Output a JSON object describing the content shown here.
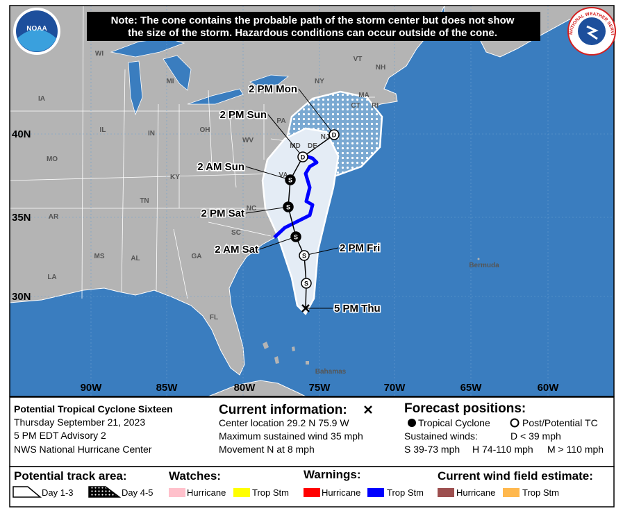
{
  "header": {
    "note_line1": "Note: The cone contains the probable path of the storm center but does not show",
    "note_line2": "the size of the storm. Hazardous conditions can occur outside of the cone.",
    "noaa_logo": "NOAA",
    "nws_logo": "NATIONAL WEATHER SERVICE"
  },
  "map": {
    "lat_labels": [
      "40N",
      "35N",
      "30N"
    ],
    "lon_labels": [
      "90W",
      "85W",
      "80W",
      "75W",
      "70W",
      "65W",
      "60W"
    ],
    "state_labels": [
      "WI",
      "MI",
      "NY",
      "VT",
      "NH",
      "MA",
      "IA",
      "IL",
      "IN",
      "OH",
      "PA",
      "CT",
      "RI",
      "NJ",
      "MD",
      "DE",
      "WV",
      "MO",
      "KY",
      "VA",
      "TN",
      "NC",
      "AR",
      "SC",
      "MS",
      "AL",
      "GA",
      "LA",
      "FL"
    ],
    "place_labels": [
      "Bermuda",
      "Bahamas"
    ],
    "forecast_points": [
      {
        "label": "5 PM Thu",
        "symbol": null,
        "filled": true
      },
      {
        "label": null,
        "symbol": "S",
        "filled": false
      },
      {
        "label": "2 PM Fri",
        "symbol": "S",
        "filled": false
      },
      {
        "label": "2 AM Sat",
        "symbol": "S",
        "filled": true
      },
      {
        "label": "2 PM Sat",
        "symbol": "S",
        "filled": true
      },
      {
        "label": "2 AM Sun",
        "symbol": "S",
        "filled": true
      },
      {
        "label": "2 PM Sun",
        "symbol": "D",
        "filled": false
      },
      {
        "label": "2 PM Mon",
        "symbol": "D",
        "filled": false
      }
    ]
  },
  "info": {
    "storm_name": "Potential Tropical Cyclone Sixteen",
    "date": "Thursday September 21, 2023",
    "advisory": "5 PM EDT Advisory 2",
    "center": "NWS National Hurricane Center",
    "current_title": "Current information:",
    "current_lines": [
      "Center location 29.2 N 75.9 W",
      "Maximum sustained wind 35 mph",
      "Movement N at 8 mph"
    ],
    "forecast_title": "Forecast positions:",
    "tc_label": "Tropical Cyclone",
    "ptc_label": "Post/Potential TC",
    "sustained_winds": "Sustained winds:",
    "d_wind": "D < 39 mph",
    "s_wind": "S 39-73 mph",
    "h_wind": "H 74-110 mph",
    "m_wind": "M > 110 mph"
  },
  "legend": {
    "track_title": "Potential track area:",
    "day13": "Day 1-3",
    "day45": "Day 4-5",
    "watches_title": "Watches:",
    "watches": [
      "Hurricane",
      "Trop Stm"
    ],
    "warnings_title": "Warnings:",
    "warnings": [
      "Hurricane",
      "Trop Stm"
    ],
    "wind_title": "Current wind field estimate:",
    "wind": [
      "Hurricane",
      "Trop Stm"
    ]
  }
}
